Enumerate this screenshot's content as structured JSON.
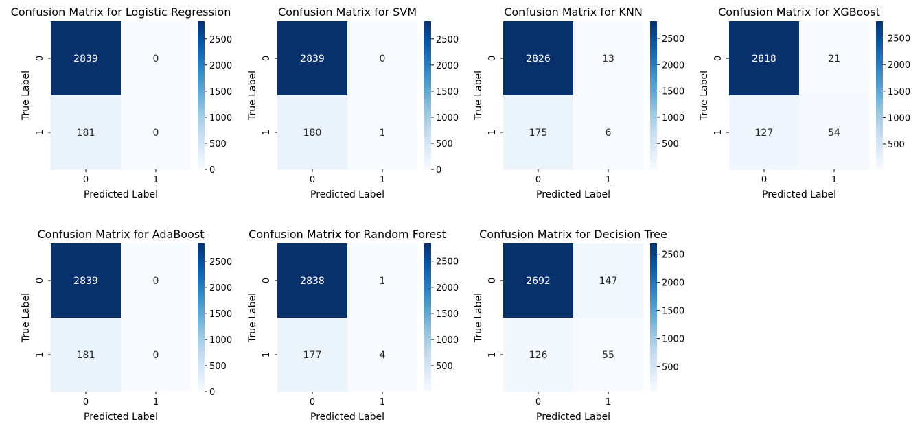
{
  "figure": {
    "background": "#ffffff",
    "colormap": "Blues"
  },
  "chart_data": [
    {
      "type": "heatmap",
      "title": "Confusion Matrix for Logistic Regression",
      "xlabel": "Predicted Label",
      "ylabel": "True Label",
      "x_ticks": [
        "0",
        "1"
      ],
      "y_ticks": [
        "0",
        "1"
      ],
      "matrix": [
        [
          2839,
          0
        ],
        [
          181,
          0
        ]
      ],
      "colorbar": {
        "vmin": 0,
        "vmax": 2839,
        "ticks": [
          0,
          500,
          1000,
          1500,
          2000,
          2500
        ]
      }
    },
    {
      "type": "heatmap",
      "title": "Confusion Matrix for SVM",
      "xlabel": "Predicted Label",
      "ylabel": "True Label",
      "x_ticks": [
        "0",
        "1"
      ],
      "y_ticks": [
        "0",
        "1"
      ],
      "matrix": [
        [
          2839,
          0
        ],
        [
          180,
          1
        ]
      ],
      "colorbar": {
        "vmin": 0,
        "vmax": 2839,
        "ticks": [
          0,
          500,
          1000,
          1500,
          2000,
          2500
        ]
      }
    },
    {
      "type": "heatmap",
      "title": "Confusion Matrix for KNN",
      "xlabel": "Predicted Label",
      "ylabel": "True Label",
      "x_ticks": [
        "0",
        "1"
      ],
      "y_ticks": [
        "0",
        "1"
      ],
      "matrix": [
        [
          2826,
          13
        ],
        [
          175,
          6
        ]
      ],
      "colorbar": {
        "vmin": 6,
        "vmax": 2826,
        "ticks": [
          500,
          1000,
          1500,
          2000,
          2500
        ]
      }
    },
    {
      "type": "heatmap",
      "title": "Confusion Matrix for XGBoost",
      "xlabel": "Predicted Label",
      "ylabel": "True Label",
      "x_ticks": [
        "0",
        "1"
      ],
      "y_ticks": [
        "0",
        "1"
      ],
      "matrix": [
        [
          2818,
          21
        ],
        [
          127,
          54
        ]
      ],
      "colorbar": {
        "vmin": 21,
        "vmax": 2818,
        "ticks": [
          500,
          1000,
          1500,
          2000,
          2500
        ]
      }
    },
    {
      "type": "heatmap",
      "title": "Confusion Matrix for AdaBoost",
      "xlabel": "Predicted Label",
      "ylabel": "True Label",
      "x_ticks": [
        "0",
        "1"
      ],
      "y_ticks": [
        "0",
        "1"
      ],
      "matrix": [
        [
          2839,
          0
        ],
        [
          181,
          0
        ]
      ],
      "colorbar": {
        "vmin": 0,
        "vmax": 2839,
        "ticks": [
          0,
          500,
          1000,
          1500,
          2000,
          2500
        ]
      }
    },
    {
      "type": "heatmap",
      "title": "Confusion Matrix for Random Forest",
      "xlabel": "Predicted Label",
      "ylabel": "True Label",
      "x_ticks": [
        "0",
        "1"
      ],
      "y_ticks": [
        "0",
        "1"
      ],
      "matrix": [
        [
          2838,
          1
        ],
        [
          177,
          4
        ]
      ],
      "colorbar": {
        "vmin": 1,
        "vmax": 2838,
        "ticks": [
          500,
          1000,
          1500,
          2000,
          2500
        ]
      }
    },
    {
      "type": "heatmap",
      "title": "Confusion Matrix for Decision Tree",
      "xlabel": "Predicted Label",
      "ylabel": "True Label",
      "x_ticks": [
        "0",
        "1"
      ],
      "y_ticks": [
        "0",
        "1"
      ],
      "matrix": [
        [
          2692,
          147
        ],
        [
          126,
          55
        ]
      ],
      "colorbar": {
        "vmin": 55,
        "vmax": 2692,
        "ticks": [
          500,
          1000,
          1500,
          2000,
          2500
        ]
      }
    }
  ]
}
